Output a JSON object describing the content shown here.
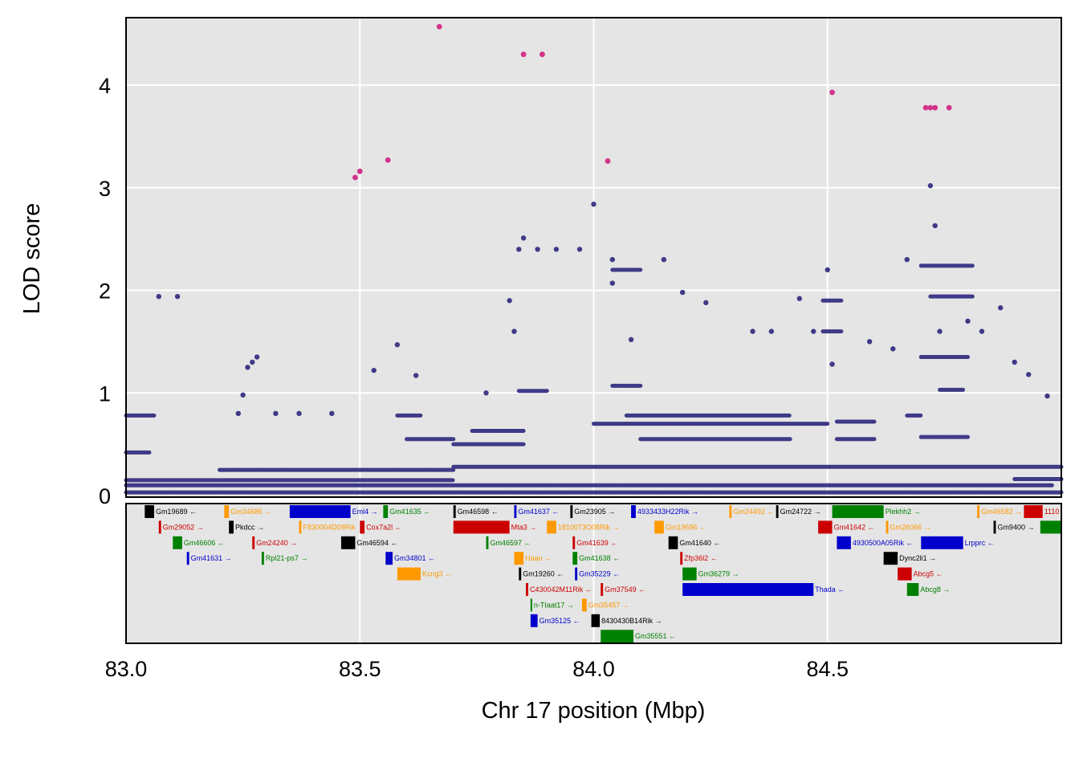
{
  "chart_data": {
    "type": "scatter",
    "xlabel": "Chr 17 position (Mbp)",
    "ylabel": "LOD score",
    "xlim": [
      83.0,
      85.0
    ],
    "ylim": [
      0,
      4.65
    ],
    "x_ticks": [
      "83.0",
      "83.5",
      "84.0",
      "84.5"
    ],
    "y_ticks": [
      "0",
      "1",
      "2",
      "3",
      "4"
    ],
    "grid": true,
    "panel_background": "#e5e5e5",
    "colors": {
      "points": "#3f3a87",
      "highlight": "#d3328a",
      "grid": "#ffffff"
    },
    "highlight_points": [
      {
        "x": 83.49,
        "y": 3.1
      },
      {
        "x": 83.5,
        "y": 3.16
      },
      {
        "x": 83.56,
        "y": 3.27
      },
      {
        "x": 83.67,
        "y": 4.57
      },
      {
        "x": 83.85,
        "y": 4.3
      },
      {
        "x": 83.89,
        "y": 4.3
      },
      {
        "x": 84.03,
        "y": 3.26
      },
      {
        "x": 84.51,
        "y": 3.93
      },
      {
        "x": 84.71,
        "y": 3.78
      },
      {
        "x": 84.72,
        "y": 3.78
      },
      {
        "x": 84.73,
        "y": 3.78
      },
      {
        "x": 84.76,
        "y": 3.78
      }
    ],
    "points": [
      {
        "x": 83.07,
        "y": 1.94
      },
      {
        "x": 83.11,
        "y": 1.94
      },
      {
        "x": 83.24,
        "y": 0.8
      },
      {
        "x": 83.25,
        "y": 0.98
      },
      {
        "x": 83.26,
        "y": 1.25
      },
      {
        "x": 83.27,
        "y": 1.3
      },
      {
        "x": 83.28,
        "y": 1.35
      },
      {
        "x": 83.32,
        "y": 0.8
      },
      {
        "x": 83.37,
        "y": 0.8
      },
      {
        "x": 83.44,
        "y": 0.8
      },
      {
        "x": 83.53,
        "y": 1.22
      },
      {
        "x": 83.58,
        "y": 1.47
      },
      {
        "x": 83.62,
        "y": 1.17
      },
      {
        "x": 83.77,
        "y": 1.0
      },
      {
        "x": 83.82,
        "y": 1.9
      },
      {
        "x": 83.83,
        "y": 1.6
      },
      {
        "x": 83.84,
        "y": 2.4
      },
      {
        "x": 83.85,
        "y": 2.51
      },
      {
        "x": 83.88,
        "y": 2.4
      },
      {
        "x": 83.92,
        "y": 2.4
      },
      {
        "x": 83.97,
        "y": 2.4
      },
      {
        "x": 84.0,
        "y": 2.84
      },
      {
        "x": 84.04,
        "y": 2.3
      },
      {
        "x": 84.04,
        "y": 2.07
      },
      {
        "x": 84.08,
        "y": 1.52
      },
      {
        "x": 84.15,
        "y": 2.3
      },
      {
        "x": 84.19,
        "y": 1.98
      },
      {
        "x": 84.24,
        "y": 1.88
      },
      {
        "x": 84.34,
        "y": 1.6
      },
      {
        "x": 84.38,
        "y": 1.6
      },
      {
        "x": 84.44,
        "y": 1.92
      },
      {
        "x": 84.47,
        "y": 1.6
      },
      {
        "x": 84.5,
        "y": 2.2
      },
      {
        "x": 84.51,
        "y": 1.28
      },
      {
        "x": 84.59,
        "y": 1.5
      },
      {
        "x": 84.64,
        "y": 1.43
      },
      {
        "x": 84.67,
        "y": 2.3
      },
      {
        "x": 84.72,
        "y": 3.02
      },
      {
        "x": 84.73,
        "y": 2.63
      },
      {
        "x": 84.74,
        "y": 1.6
      },
      {
        "x": 84.8,
        "y": 1.7
      },
      {
        "x": 84.83,
        "y": 1.6
      },
      {
        "x": 84.87,
        "y": 1.83
      },
      {
        "x": 84.9,
        "y": 1.3
      },
      {
        "x": 84.93,
        "y": 1.18
      },
      {
        "x": 84.97,
        "y": 0.97
      }
    ],
    "level_segments": [
      {
        "x0": 83.0,
        "x1": 85.0,
        "y": 0.03
      },
      {
        "x0": 83.0,
        "x1": 84.98,
        "y": 0.1
      },
      {
        "x0": 83.0,
        "x1": 83.7,
        "y": 0.15
      },
      {
        "x0": 83.0,
        "x1": 83.06,
        "y": 0.78
      },
      {
        "x0": 83.0,
        "x1": 83.05,
        "y": 0.42
      },
      {
        "x0": 83.2,
        "x1": 83.7,
        "y": 0.25
      },
      {
        "x0": 83.7,
        "x1": 85.0,
        "y": 0.28
      },
      {
        "x0": 83.7,
        "x1": 83.85,
        "y": 0.5
      },
      {
        "x0": 83.74,
        "x1": 83.85,
        "y": 0.63
      },
      {
        "x0": 83.6,
        "x1": 83.7,
        "y": 0.55
      },
      {
        "x0": 83.58,
        "x1": 83.63,
        "y": 0.78
      },
      {
        "x0": 83.84,
        "x1": 83.9,
        "y": 1.02
      },
      {
        "x0": 84.0,
        "x1": 84.5,
        "y": 0.7
      },
      {
        "x0": 84.07,
        "x1": 84.42,
        "y": 0.78
      },
      {
        "x0": 84.1,
        "x1": 84.42,
        "y": 0.55
      },
      {
        "x0": 84.04,
        "x1": 84.1,
        "y": 2.2
      },
      {
        "x0": 84.04,
        "x1": 84.1,
        "y": 1.07
      },
      {
        "x0": 84.49,
        "x1": 84.53,
        "y": 1.9
      },
      {
        "x0": 84.49,
        "x1": 84.53,
        "y": 1.6
      },
      {
        "x0": 84.52,
        "x1": 84.6,
        "y": 0.72
      },
      {
        "x0": 84.52,
        "x1": 84.6,
        "y": 0.55
      },
      {
        "x0": 84.7,
        "x1": 84.81,
        "y": 2.24
      },
      {
        "x0": 84.72,
        "x1": 84.81,
        "y": 1.94
      },
      {
        "x0": 84.7,
        "x1": 84.8,
        "y": 1.35
      },
      {
        "x0": 84.74,
        "x1": 84.79,
        "y": 1.03
      },
      {
        "x0": 84.67,
        "x1": 84.7,
        "y": 0.78
      },
      {
        "x0": 84.7,
        "x1": 84.8,
        "y": 0.57
      },
      {
        "x0": 84.9,
        "x1": 85.0,
        "y": 0.16
      }
    ],
    "gene_colors": [
      "#000000",
      "#ff9900",
      "#0000cc",
      "#008000",
      "#cc0000"
    ],
    "genes": [
      {
        "name": "Gm19689",
        "start": 83.04,
        "end": 83.06,
        "row": 0,
        "color": "#000000",
        "strand": "←"
      },
      {
        "name": "Gm34686",
        "start": 83.21,
        "end": 83.22,
        "row": 0,
        "color": "#ff9900",
        "strand": "←"
      },
      {
        "name": "Eml4",
        "start": 83.35,
        "end": 83.48,
        "row": 0,
        "color": "#0000cc",
        "strand": "→"
      },
      {
        "name": "Gm41635",
        "start": 83.55,
        "end": 83.56,
        "row": 0,
        "color": "#008000",
        "strand": "←"
      },
      {
        "name": "Gm46598",
        "start": 83.7,
        "end": 83.705,
        "row": 0,
        "color": "#000000",
        "strand": "←"
      },
      {
        "name": "Gm41637",
        "start": 83.83,
        "end": 83.835,
        "row": 0,
        "color": "#0000cc",
        "strand": "←"
      },
      {
        "name": "Gm23905",
        "start": 83.95,
        "end": 83.955,
        "row": 0,
        "color": "#000000",
        "strand": "→"
      },
      {
        "name": "4933433H22Rik",
        "start": 84.08,
        "end": 84.09,
        "row": 0,
        "color": "#0000cc",
        "strand": "→"
      },
      {
        "name": "Gm24492",
        "start": 84.29,
        "end": 84.295,
        "row": 0,
        "color": "#ff9900",
        "strand": "←"
      },
      {
        "name": "Gm24722",
        "start": 84.39,
        "end": 84.395,
        "row": 0,
        "color": "#000000",
        "strand": "→"
      },
      {
        "name": "Plekhh2",
        "start": 84.51,
        "end": 84.62,
        "row": 0,
        "color": "#008000",
        "strand": "→"
      },
      {
        "name": "Gm46582",
        "start": 84.82,
        "end": 84.825,
        "row": 0,
        "color": "#ff9900",
        "strand": "→"
      },
      {
        "name": "1110",
        "start": 84.92,
        "end": 84.96,
        "row": 0,
        "color": "#cc0000",
        "strand": ""
      },
      {
        "name": "Gm29052",
        "start": 83.07,
        "end": 83.075,
        "row": 1,
        "color": "#cc0000",
        "strand": "→"
      },
      {
        "name": "Pkdcc",
        "start": 83.22,
        "end": 83.23,
        "row": 1,
        "color": "#000000",
        "strand": "→"
      },
      {
        "name": "F830004D09Rik",
        "start": 83.37,
        "end": 83.375,
        "row": 1,
        "color": "#ff9900",
        "strand": ""
      },
      {
        "name": "Cox7a2l",
        "start": 83.5,
        "end": 83.51,
        "row": 1,
        "color": "#cc0000",
        "strand": "←"
      },
      {
        "name": "Mta3",
        "start": 83.7,
        "end": 83.82,
        "row": 1,
        "color": "#cc0000",
        "strand": "→"
      },
      {
        "name": "1810073O08Rik",
        "start": 83.9,
        "end": 83.92,
        "row": 1,
        "color": "#ff9900",
        "strand": "→"
      },
      {
        "name": "Gm19696",
        "start": 84.13,
        "end": 84.15,
        "row": 1,
        "color": "#ff9900",
        "strand": "←"
      },
      {
        "name": "Gm41642",
        "start": 84.48,
        "end": 84.51,
        "row": 1,
        "color": "#cc0000",
        "strand": "←"
      },
      {
        "name": "Gm26066",
        "start": 84.625,
        "end": 84.63,
        "row": 1,
        "color": "#ff9900",
        "strand": "→"
      },
      {
        "name": "Gm9400",
        "start": 84.855,
        "end": 84.86,
        "row": 1,
        "color": "#000000",
        "strand": "→"
      },
      {
        "name": "",
        "start": 84.955,
        "end": 85.0,
        "row": 1,
        "color": "#008000",
        "strand": ""
      },
      {
        "name": "Gm46606",
        "start": 83.1,
        "end": 83.12,
        "row": 2,
        "color": "#008000",
        "strand": "←"
      },
      {
        "name": "Gm24240",
        "start": 83.27,
        "end": 83.275,
        "row": 2,
        "color": "#cc0000",
        "strand": "→"
      },
      {
        "name": "Gm46594",
        "start": 83.46,
        "end": 83.49,
        "row": 2,
        "color": "#000000",
        "strand": "←"
      },
      {
        "name": "Gm46597",
        "start": 83.77,
        "end": 83.775,
        "row": 2,
        "color": "#008000",
        "strand": "←"
      },
      {
        "name": "Gm41639",
        "start": 83.955,
        "end": 83.96,
        "row": 2,
        "color": "#cc0000",
        "strand": "←"
      },
      {
        "name": "Gm41640",
        "start": 84.16,
        "end": 84.18,
        "row": 2,
        "color": "#000000",
        "strand": "←"
      },
      {
        "name": "4930500A05Rik",
        "start": 84.52,
        "end": 84.55,
        "row": 2,
        "color": "#0000cc",
        "strand": "←"
      },
      {
        "name": "Lrpprc",
        "start": 84.7,
        "end": 84.79,
        "row": 2,
        "color": "#0000cc",
        "strand": "←"
      },
      {
        "name": "Gm41631",
        "start": 83.13,
        "end": 83.135,
        "row": 3,
        "color": "#0000cc",
        "strand": "→"
      },
      {
        "name": "Rpl21-ps7",
        "start": 83.29,
        "end": 83.295,
        "row": 3,
        "color": "#008000",
        "strand": "→"
      },
      {
        "name": "Gm34801",
        "start": 83.555,
        "end": 83.57,
        "row": 3,
        "color": "#0000cc",
        "strand": "←"
      },
      {
        "name": "Haao",
        "start": 83.83,
        "end": 83.85,
        "row": 3,
        "color": "#ff9900",
        "strand": "←"
      },
      {
        "name": "Gm41638",
        "start": 83.955,
        "end": 83.965,
        "row": 3,
        "color": "#008000",
        "strand": "←"
      },
      {
        "name": "Zfp36l2",
        "start": 84.185,
        "end": 84.19,
        "row": 3,
        "color": "#cc0000",
        "strand": "←"
      },
      {
        "name": "Dync2li1",
        "start": 84.62,
        "end": 84.65,
        "row": 3,
        "color": "#000000",
        "strand": "→"
      },
      {
        "name": "Kcng3",
        "start": 83.58,
        "end": 83.63,
        "row": 4,
        "color": "#ff9900",
        "strand": "←"
      },
      {
        "name": "Gm19260",
        "start": 83.84,
        "end": 83.845,
        "row": 4,
        "color": "#000000",
        "strand": "←"
      },
      {
        "name": "Gm35229",
        "start": 83.96,
        "end": 83.965,
        "row": 4,
        "color": "#0000cc",
        "strand": "←"
      },
      {
        "name": "Gm36279",
        "start": 84.19,
        "end": 84.22,
        "row": 4,
        "color": "#008000",
        "strand": "→"
      },
      {
        "name": "Abcg5",
        "start": 84.65,
        "end": 84.68,
        "row": 4,
        "color": "#cc0000",
        "strand": "←"
      },
      {
        "name": "C430042M11Rik",
        "start": 83.855,
        "end": 83.86,
        "row": 5,
        "color": "#cc0000",
        "strand": "←"
      },
      {
        "name": "Gm37549",
        "start": 84.015,
        "end": 84.02,
        "row": 5,
        "color": "#cc0000",
        "strand": "←"
      },
      {
        "name": "Thada",
        "start": 84.19,
        "end": 84.47,
        "row": 5,
        "color": "#0000cc",
        "strand": "←"
      },
      {
        "name": "Abcg8",
        "start": 84.67,
        "end": 84.695,
        "row": 5,
        "color": "#008000",
        "strand": "→"
      },
      {
        "name": "n-TIaat17",
        "start": 83.865,
        "end": 83.868,
        "row": 6,
        "color": "#008000",
        "strand": "→"
      },
      {
        "name": "Gm35457",
        "start": 83.975,
        "end": 83.985,
        "row": 6,
        "color": "#ff9900",
        "strand": "→"
      },
      {
        "name": "Gm35125",
        "start": 83.865,
        "end": 83.88,
        "row": 7,
        "color": "#0000cc",
        "strand": "←"
      },
      {
        "name": "8430430B14Rik",
        "start": 83.995,
        "end": 84.013,
        "row": 7,
        "color": "#000000",
        "strand": "→"
      },
      {
        "name": "Gm35551",
        "start": 84.015,
        "end": 84.085,
        "row": 8,
        "color": "#008000",
        "strand": "←"
      }
    ]
  }
}
